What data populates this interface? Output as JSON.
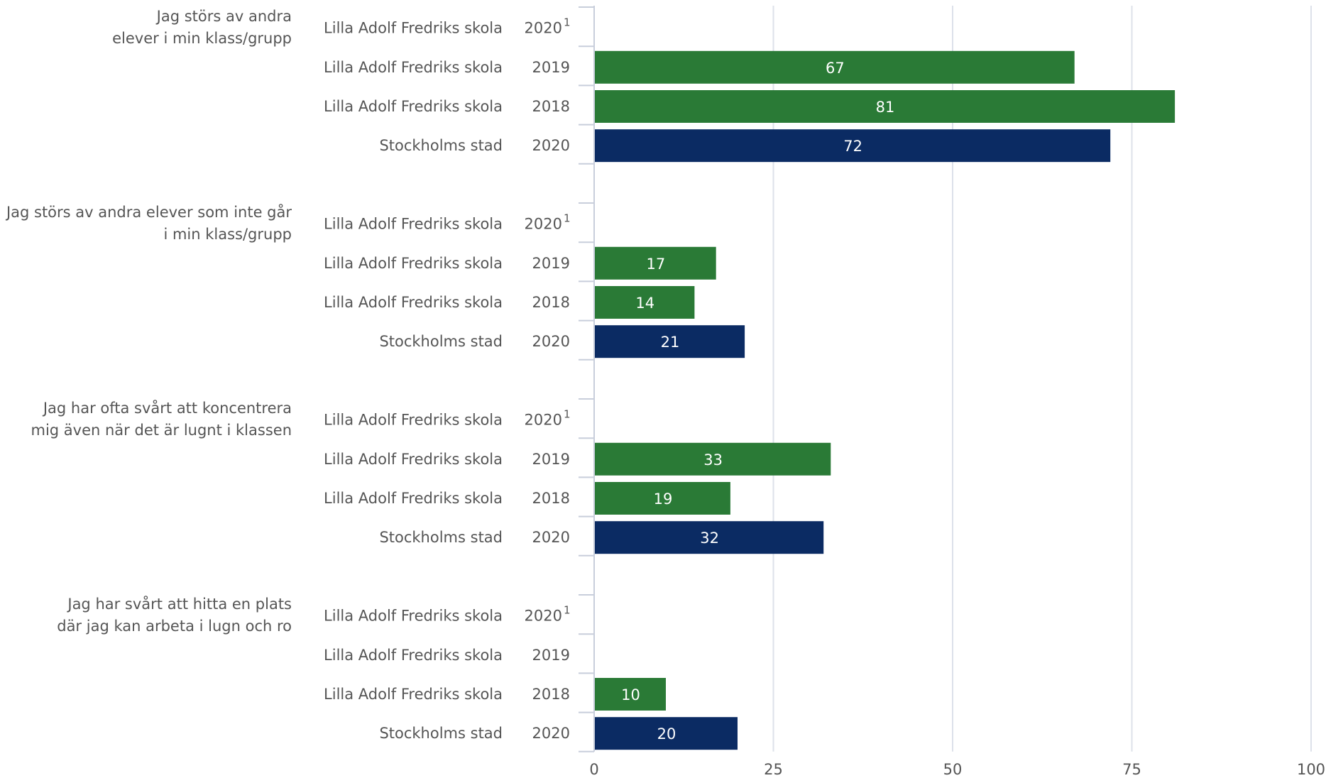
{
  "chart_data": {
    "type": "bar",
    "orientation": "horizontal",
    "xlim": [
      0,
      100
    ],
    "xticks": [
      "0",
      "25",
      "50",
      "75",
      "100"
    ],
    "grid": true,
    "colors": {
      "school": "#2a7a36",
      "city": "#0b2b63"
    },
    "groups": [
      {
        "label_lines": [
          "Jag störs av andra",
          "elever i min klass/grupp"
        ],
        "rows": [
          {
            "label": "Lilla Adolf Fredriks skola",
            "year": "2020",
            "note": "1",
            "value": null,
            "kind": "school"
          },
          {
            "label": "Lilla Adolf Fredriks skola",
            "year": "2019",
            "note": "",
            "value": 67,
            "kind": "school"
          },
          {
            "label": "Lilla Adolf Fredriks skola",
            "year": "2018",
            "note": "",
            "value": 81,
            "kind": "school"
          },
          {
            "label": "Stockholms stad",
            "year": "2020",
            "note": "",
            "value": 72,
            "kind": "city"
          }
        ]
      },
      {
        "label_lines": [
          "Jag störs av andra elever som inte går",
          "i min klass/grupp"
        ],
        "rows": [
          {
            "label": "Lilla Adolf Fredriks skola",
            "year": "2020",
            "note": "1",
            "value": null,
            "kind": "school"
          },
          {
            "label": "Lilla Adolf Fredriks skola",
            "year": "2019",
            "note": "",
            "value": 17,
            "kind": "school"
          },
          {
            "label": "Lilla Adolf Fredriks skola",
            "year": "2018",
            "note": "",
            "value": 14,
            "kind": "school"
          },
          {
            "label": "Stockholms stad",
            "year": "2020",
            "note": "",
            "value": 21,
            "kind": "city"
          }
        ]
      },
      {
        "label_lines": [
          "Jag har ofta svårt att koncentrera",
          "mig även när det är lugnt i klassen"
        ],
        "rows": [
          {
            "label": "Lilla Adolf Fredriks skola",
            "year": "2020",
            "note": "1",
            "value": null,
            "kind": "school"
          },
          {
            "label": "Lilla Adolf Fredriks skola",
            "year": "2019",
            "note": "",
            "value": 33,
            "kind": "school"
          },
          {
            "label": "Lilla Adolf Fredriks skola",
            "year": "2018",
            "note": "",
            "value": 19,
            "kind": "school"
          },
          {
            "label": "Stockholms stad",
            "year": "2020",
            "note": "",
            "value": 32,
            "kind": "city"
          }
        ]
      },
      {
        "label_lines": [
          "Jag har svårt att hitta en plats",
          "där jag kan arbeta i lugn och ro"
        ],
        "rows": [
          {
            "label": "Lilla Adolf Fredriks skola",
            "year": "2020",
            "note": "1",
            "value": null,
            "kind": "school"
          },
          {
            "label": "Lilla Adolf Fredriks skola",
            "year": "2019",
            "note": "",
            "value": null,
            "kind": "school"
          },
          {
            "label": "Lilla Adolf Fredriks skola",
            "year": "2018",
            "note": "",
            "value": 10,
            "kind": "school"
          },
          {
            "label": "Stockholms stad",
            "year": "2020",
            "note": "",
            "value": 20,
            "kind": "city"
          }
        ]
      }
    ]
  }
}
